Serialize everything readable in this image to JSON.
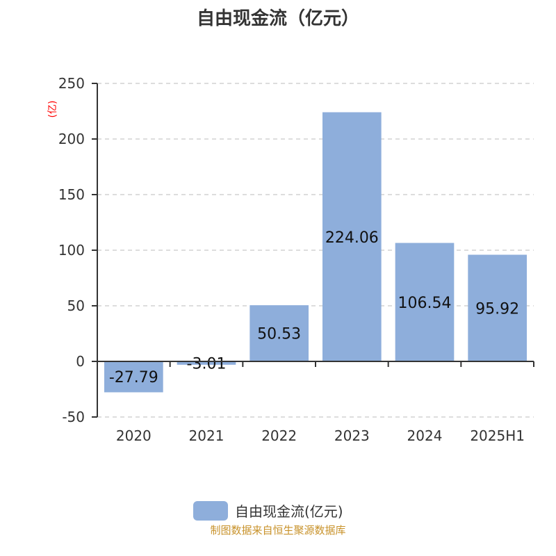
{
  "title": "自由现金流（亿元）",
  "footer": "制图数据来自恒生聚源数据库",
  "chart_data": {
    "type": "bar",
    "title": "自由现金流（亿元）",
    "ylabel": "(亿)",
    "categories": [
      "2020",
      "2021",
      "2022",
      "2023",
      "2024",
      "2025H1"
    ],
    "series": [
      {
        "name": "自由现金流(亿元)",
        "values": [
          -27.79,
          -3.01,
          50.53,
          224.06,
          106.54,
          95.92
        ],
        "color": "#8eaedb"
      }
    ],
    "data_labels": [
      "-27.79",
      "-3.01",
      "50.53",
      "224.06",
      "106.54",
      "95.92"
    ],
    "ylim": [
      -50,
      250
    ],
    "yticks": [
      -50,
      0,
      50,
      100,
      150,
      200,
      250
    ],
    "grid": true,
    "legend": "bottom",
    "ylabel_color": "#ff0000"
  }
}
